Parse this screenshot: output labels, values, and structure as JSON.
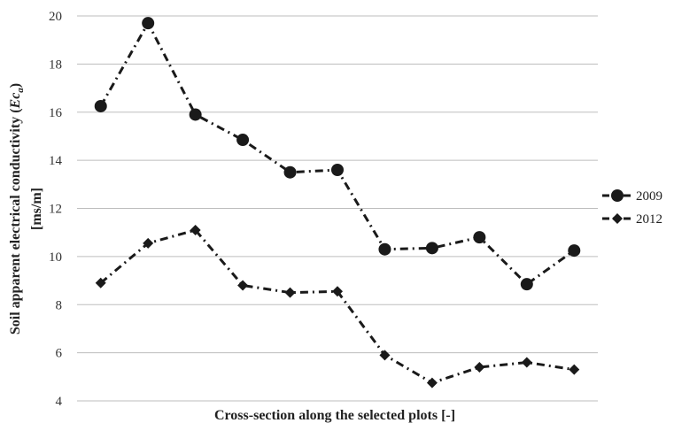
{
  "chart_data": {
    "type": "line",
    "title": "",
    "xlabel": "Cross-section along the selected plots [-]",
    "ylabel_main": "Soil apparent electrical conductivity (",
    "ylabel_symbol": "Ec",
    "ylabel_subscript": "a",
    "ylabel_close": ")",
    "ylabel_unit": "[ms/m]",
    "ylim": [
      4,
      20
    ],
    "yticks": [
      "4",
      "6",
      "8",
      "10",
      "12",
      "14",
      "16",
      "18",
      "20"
    ],
    "x": [
      1,
      2,
      3,
      4,
      5,
      6,
      7,
      8,
      9,
      10,
      11
    ],
    "grid": true,
    "legend_position": "right",
    "series": [
      {
        "name": "2009",
        "marker": "circle",
        "line_style": "dash-dot",
        "color": "#1a1a1a",
        "values": [
          16.25,
          19.7,
          15.9,
          14.85,
          13.5,
          13.6,
          10.3,
          10.35,
          10.8,
          8.85,
          10.25
        ]
      },
      {
        "name": "2012",
        "marker": "diamond",
        "line_style": "dash-dot",
        "color": "#1a1a1a",
        "values": [
          8.9,
          10.55,
          11.1,
          8.8,
          8.5,
          8.55,
          5.9,
          4.75,
          5.4,
          5.6,
          5.3
        ]
      }
    ]
  }
}
